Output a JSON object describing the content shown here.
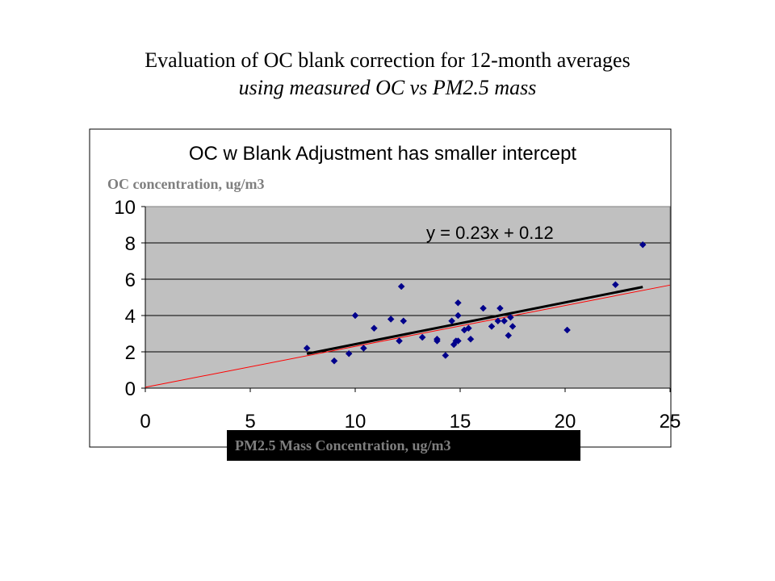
{
  "slide": {
    "title": "Evaluation of OC blank correction for 12-month averages",
    "subtitle": "using measured OC vs PM2.5 mass"
  },
  "chart_data": {
    "type": "scatter",
    "title": "OC w Blank Adjustment has smaller intercept",
    "xlabel": "PM2.5 Mass Concentration, ug/m3",
    "ylabel": "OC concentration, ug/m3",
    "xlim": [
      0,
      25
    ],
    "ylim": [
      0,
      10
    ],
    "xticks": [
      0,
      5,
      10,
      15,
      20,
      25
    ],
    "yticks": [
      0,
      2,
      4,
      6,
      8,
      10
    ],
    "grid": "horizontal",
    "plot_background": "#c0c0c0",
    "series": [
      {
        "marker": "diamond",
        "color": "#00008b",
        "points": [
          [
            7.7,
            2.2
          ],
          [
            9.0,
            1.5
          ],
          [
            9.7,
            1.9
          ],
          [
            10.0,
            4.0
          ],
          [
            10.4,
            2.2
          ],
          [
            10.9,
            3.3
          ],
          [
            11.7,
            3.8
          ],
          [
            12.1,
            2.6
          ],
          [
            12.2,
            5.6
          ],
          [
            12.3,
            3.7
          ],
          [
            13.2,
            2.8
          ],
          [
            13.9,
            2.6
          ],
          [
            13.9,
            2.7
          ],
          [
            14.3,
            1.8
          ],
          [
            14.6,
            3.7
          ],
          [
            14.7,
            2.4
          ],
          [
            14.8,
            2.6
          ],
          [
            14.9,
            2.6
          ],
          [
            14.9,
            4.0
          ],
          [
            14.9,
            4.7
          ],
          [
            15.2,
            3.2
          ],
          [
            15.4,
            3.3
          ],
          [
            15.5,
            2.7
          ],
          [
            16.1,
            4.4
          ],
          [
            16.5,
            3.4
          ],
          [
            16.8,
            3.7
          ],
          [
            16.9,
            4.4
          ],
          [
            17.1,
            3.7
          ],
          [
            17.3,
            2.9
          ],
          [
            17.4,
            3.9
          ],
          [
            17.5,
            3.4
          ],
          [
            20.1,
            3.2
          ],
          [
            22.4,
            5.7
          ],
          [
            23.7,
            7.9
          ]
        ]
      }
    ],
    "trendline": {
      "label": "y = 0.23x + 0.12",
      "slope": 0.23,
      "intercept": 0.12,
      "x_range": [
        7.7,
        23.7
      ],
      "color": "#000000"
    },
    "reference_line": {
      "slope": 0.225,
      "intercept": 0.05,
      "x_range": [
        0,
        25
      ],
      "color": "#ff0000"
    }
  }
}
